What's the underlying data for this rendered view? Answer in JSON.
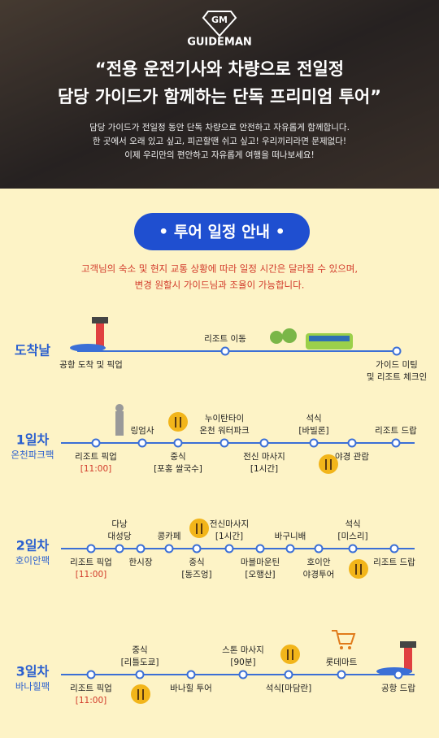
{
  "header": {
    "logo_mark": "GM",
    "logo": "GUIDEMAN",
    "quote": [
      "“전용 운전기사와 차량으로 전일정",
      "담당 가이드가 함께하는 단독 프리미엄 투어”"
    ],
    "description": [
      "담당 가이드가 전일정 동안 단독 차량으로 안전하고 자유롭게 함께합니다.",
      "한 곳에서 오래 있고 싶고, 피곤할땐 쉬고 싶고! 우리끼리라면 문제없다!",
      "이제 우리만의 편안하고 자유롭게 여행을 떠나보세요!"
    ]
  },
  "schedule": {
    "title": "• 투어 일정 안내 •",
    "notice": [
      "고객님의 숙소 및 현지 교통 상황에 따라 일정 시간은 달라질 수 있으며,",
      "변경 원할시 가이드님과 조율이 가능합니다."
    ],
    "days": [
      {
        "label": "도착날",
        "stops": [
          {
            "text": [
              "공항 도착 및 픽업"
            ]
          },
          {
            "text": [
              "리조트 이동"
            ]
          },
          {
            "text": [
              "가이드 미팅",
              "및 리조트 체크인"
            ]
          }
        ]
      },
      {
        "label": "1일차",
        "sublabel": "온천파크팩",
        "stops": [
          {
            "text": [
              "리조트 픽업"
            ],
            "time": "[11:00]"
          },
          {
            "text": [
              "링엄사"
            ]
          },
          {
            "text": [
              "중식",
              "[포홍 쌀국수]"
            ]
          },
          {
            "text": [
              "누이탄타이",
              "온천 워터파크"
            ]
          },
          {
            "text": [
              "전신 마사지",
              "[1시간]"
            ]
          },
          {
            "text": [
              "석식",
              "[바빌론]"
            ]
          },
          {
            "text": [
              "야경 관람"
            ]
          },
          {
            "text": [
              "리조트 드랍"
            ]
          }
        ]
      },
      {
        "label": "2일차",
        "sublabel": "호이안팩",
        "stops": [
          {
            "text": [
              "리조트 픽업"
            ],
            "time": "[11:00]"
          },
          {
            "text": [
              "다낭",
              "대성당"
            ]
          },
          {
            "text": [
              "한시장"
            ]
          },
          {
            "text": [
              "콩카페"
            ]
          },
          {
            "text": [
              "중식",
              "[동즈엉]"
            ]
          },
          {
            "text": [
              "전신마사지",
              "[1시간]"
            ]
          },
          {
            "text": [
              "마블마운틴",
              "[오행산]"
            ]
          },
          {
            "text": [
              "바구니배"
            ]
          },
          {
            "text": [
              "호이안",
              "야경투어"
            ]
          },
          {
            "text": [
              "석식",
              "[미스리]"
            ]
          },
          {
            "text": [
              "리조트 드랍"
            ]
          }
        ]
      },
      {
        "label": "3일차",
        "sublabel": "바나힐팩",
        "stops": [
          {
            "text": [
              "리조트 픽업"
            ],
            "time": "[11:00]"
          },
          {
            "text": [
              "중식",
              "[리틀도쿄]"
            ]
          },
          {
            "text": [
              "바나힐 투어"
            ]
          },
          {
            "text": [
              "스톤 마사지",
              "[90분]"
            ]
          },
          {
            "text": [
              "석식[마담란]"
            ]
          },
          {
            "text": [
              "롯데마트"
            ]
          },
          {
            "text": [
              "공항 드랍"
            ]
          }
        ]
      }
    ]
  }
}
